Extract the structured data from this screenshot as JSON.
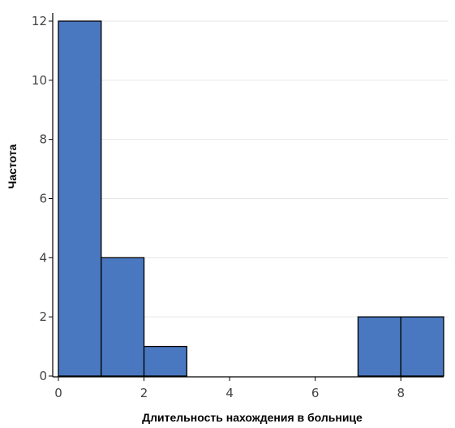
{
  "chart_data": {
    "type": "histogram",
    "xlabel": "Длительность нахождения в больнице",
    "ylabel": "Частота",
    "xlim": [
      0,
      9
    ],
    "ylim": [
      0,
      12
    ],
    "x_ticks": [
      0,
      2,
      4,
      6,
      8
    ],
    "y_ticks": [
      0,
      2,
      4,
      6,
      8,
      10,
      12
    ],
    "grid": "horizontal",
    "bar_color": "#4a78c0",
    "bins": [
      {
        "x0": 0,
        "x1": 1,
        "count": 12
      },
      {
        "x0": 1,
        "x1": 2,
        "count": 4
      },
      {
        "x0": 2,
        "x1": 3,
        "count": 1
      },
      {
        "x0": 3,
        "x1": 4,
        "count": 0
      },
      {
        "x0": 4,
        "x1": 5,
        "count": 0
      },
      {
        "x0": 5,
        "x1": 6,
        "count": 0
      },
      {
        "x0": 6,
        "x1": 7,
        "count": 0
      },
      {
        "x0": 7,
        "x1": 8,
        "count": 2
      },
      {
        "x0": 8,
        "x1": 9,
        "count": 2
      }
    ]
  }
}
